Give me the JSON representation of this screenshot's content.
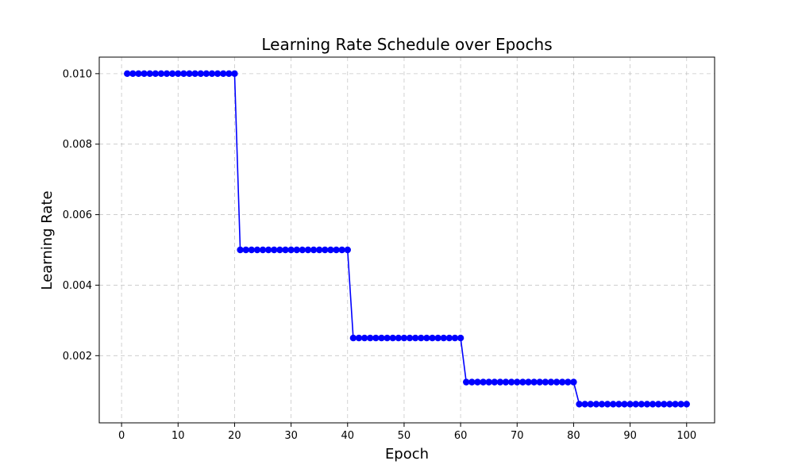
{
  "chart_data": {
    "type": "line",
    "title": "Learning Rate Schedule over Epochs",
    "xlabel": "Epoch",
    "ylabel": "Learning Rate",
    "xlim": [
      -3.95,
      104.95
    ],
    "ylim": [
      9.4e-05,
      0.010469
    ],
    "xticks": [
      0,
      10,
      20,
      30,
      40,
      50,
      60,
      70,
      80,
      90,
      100
    ],
    "xtick_labels": [
      "0",
      "10",
      "20",
      "30",
      "40",
      "50",
      "60",
      "70",
      "80",
      "90",
      "100"
    ],
    "yticks": [
      0.002,
      0.004,
      0.006,
      0.008,
      0.01
    ],
    "ytick_labels": [
      "0.002",
      "0.004",
      "0.006",
      "0.008",
      "0.010"
    ],
    "grid": true,
    "series": [
      {
        "name": "Learning Rate",
        "color": "#0000ff",
        "marker": "circle",
        "schedule": [
          {
            "epochs": [
              1,
              20
            ],
            "value": 0.01
          },
          {
            "epochs": [
              21,
              40
            ],
            "value": 0.005
          },
          {
            "epochs": [
              41,
              60
            ],
            "value": 0.0025
          },
          {
            "epochs": [
              61,
              80
            ],
            "value": 0.00125
          },
          {
            "epochs": [
              81,
              100
            ],
            "value": 0.000625
          }
        ]
      }
    ]
  }
}
